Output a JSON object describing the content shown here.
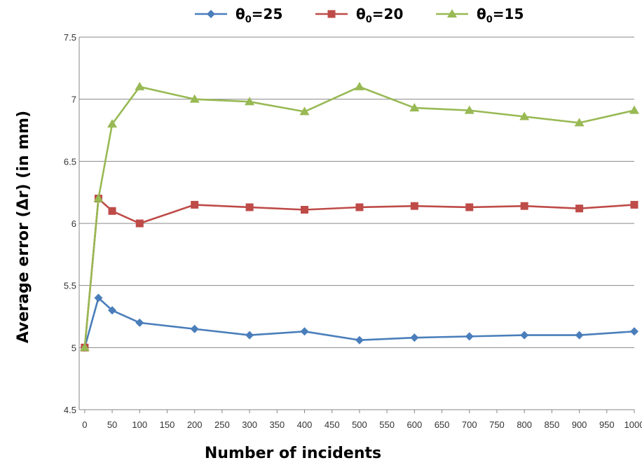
{
  "chart_data": {
    "type": "line",
    "title": "",
    "xlabel": "Number of incidents",
    "ylabel": "Average error (Δr) (in mm)",
    "xlim": [
      -10,
      1000
    ],
    "ylim": [
      4.5,
      7.5
    ],
    "x_ticks": [
      0,
      50,
      100,
      150,
      200,
      250,
      300,
      350,
      400,
      450,
      500,
      550,
      600,
      650,
      700,
      750,
      800,
      850,
      900,
      950,
      1000
    ],
    "y_ticks": [
      4.5,
      5,
      5.5,
      6,
      6.5,
      7,
      7.5
    ],
    "y_tick_labels": [
      "4.5",
      "5",
      "5.5",
      "6",
      "6.5",
      "7",
      "7.5"
    ],
    "grid": "horizontal",
    "legend_position": "top",
    "x": [
      0,
      25,
      50,
      100,
      200,
      300,
      400,
      500,
      600,
      700,
      800,
      900,
      1000
    ],
    "series": [
      {
        "name_main": "θ",
        "name_sub": "0",
        "name_tail": "=25",
        "color": "#4a7ebb",
        "marker": "diamond",
        "values": [
          5.0,
          5.4,
          5.3,
          5.2,
          5.15,
          5.1,
          5.13,
          5.06,
          5.08,
          5.09,
          5.1,
          5.1,
          5.13
        ]
      },
      {
        "name_main": "θ",
        "name_sub": "0",
        "name_tail": "=20",
        "color": "#be4b48",
        "marker": "square",
        "values": [
          5.0,
          6.2,
          6.1,
          6.0,
          6.15,
          6.13,
          6.11,
          6.13,
          6.14,
          6.13,
          6.14,
          6.12,
          6.15
        ]
      },
      {
        "name_main": "θ",
        "name_sub": "0",
        "name_tail": "=15",
        "color": "#98b954",
        "marker": "triangle",
        "values": [
          5.0,
          6.2,
          6.8,
          7.1,
          7.0,
          6.98,
          6.9,
          7.1,
          6.93,
          6.91,
          6.86,
          6.81,
          6.91
        ]
      }
    ]
  }
}
